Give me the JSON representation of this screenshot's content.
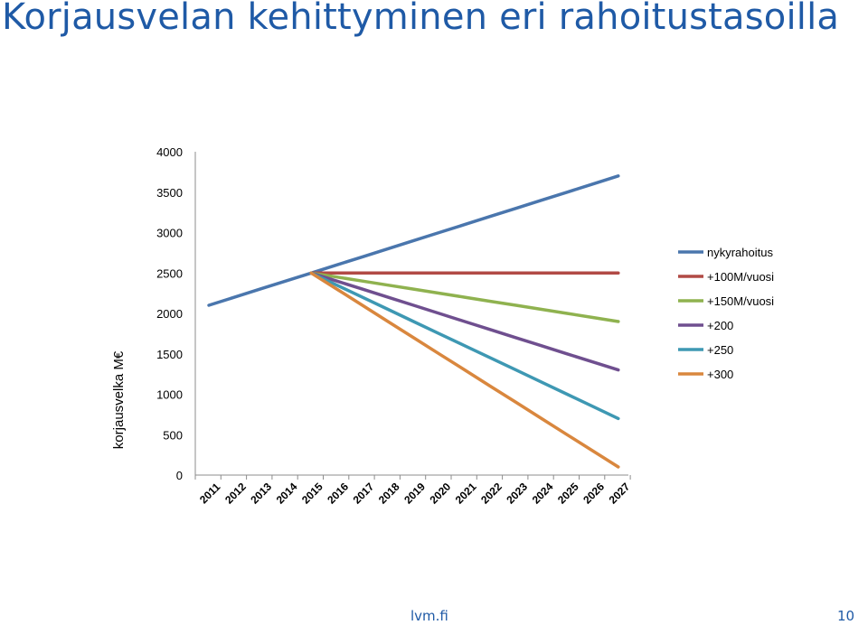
{
  "slide": {
    "title": "Korjausvelan kehittyminen eri rahoitustasoilla",
    "footer_site": "lvm.fi",
    "page_number": "10"
  },
  "chart_data": {
    "type": "line",
    "title": "",
    "xlabel": "",
    "ylabel": "korjausvelka M€",
    "x": [
      "2011",
      "2012",
      "2013",
      "2014",
      "2015",
      "2016",
      "2017",
      "2018",
      "2019",
      "2020",
      "2021",
      "2022",
      "2023",
      "2024",
      "2025",
      "2026",
      "2027"
    ],
    "ylim": [
      0,
      4000
    ],
    "yticks": [
      0,
      500,
      1000,
      1500,
      2000,
      2500,
      3000,
      3500,
      4000
    ],
    "grid": false,
    "legend_position": "right",
    "series": [
      {
        "name": "nykyrahoitus",
        "color": "#4a76ad",
        "values": [
          2100,
          2200,
          2300,
          2400,
          2500,
          2600,
          2700,
          2800,
          2900,
          3000,
          3100,
          3200,
          3300,
          3400,
          3500,
          3600,
          3700
        ]
      },
      {
        "name": "+100M/vuosi",
        "color": "#b14a45",
        "values": [
          null,
          null,
          null,
          null,
          2500,
          2500,
          2500,
          2500,
          2500,
          2500,
          2500,
          2500,
          2500,
          2500,
          2500,
          2500,
          2500
        ]
      },
      {
        "name": "+150M/vuosi",
        "color": "#8fb24f",
        "values": [
          null,
          null,
          null,
          null,
          2500,
          2450,
          2400,
          2350,
          2300,
          2250,
          2200,
          2150,
          2100,
          2050,
          2000,
          1950,
          1900
        ]
      },
      {
        "name": "+200",
        "color": "#6f4f8f",
        "values": [
          null,
          null,
          null,
          null,
          2500,
          2400,
          2300,
          2200,
          2100,
          2000,
          1900,
          1800,
          1700,
          1600,
          1500,
          1400,
          1300
        ]
      },
      {
        "name": "+250",
        "color": "#3e98b3",
        "values": [
          null,
          null,
          null,
          null,
          2500,
          2350,
          2200,
          2050,
          1900,
          1750,
          1600,
          1450,
          1300,
          1150,
          1000,
          850,
          700
        ]
      },
      {
        "name": "+300",
        "color": "#d9873e",
        "values": [
          null,
          null,
          null,
          null,
          2500,
          2300,
          2100,
          1900,
          1700,
          1500,
          1300,
          1100,
          900,
          700,
          500,
          300,
          100
        ]
      }
    ]
  }
}
